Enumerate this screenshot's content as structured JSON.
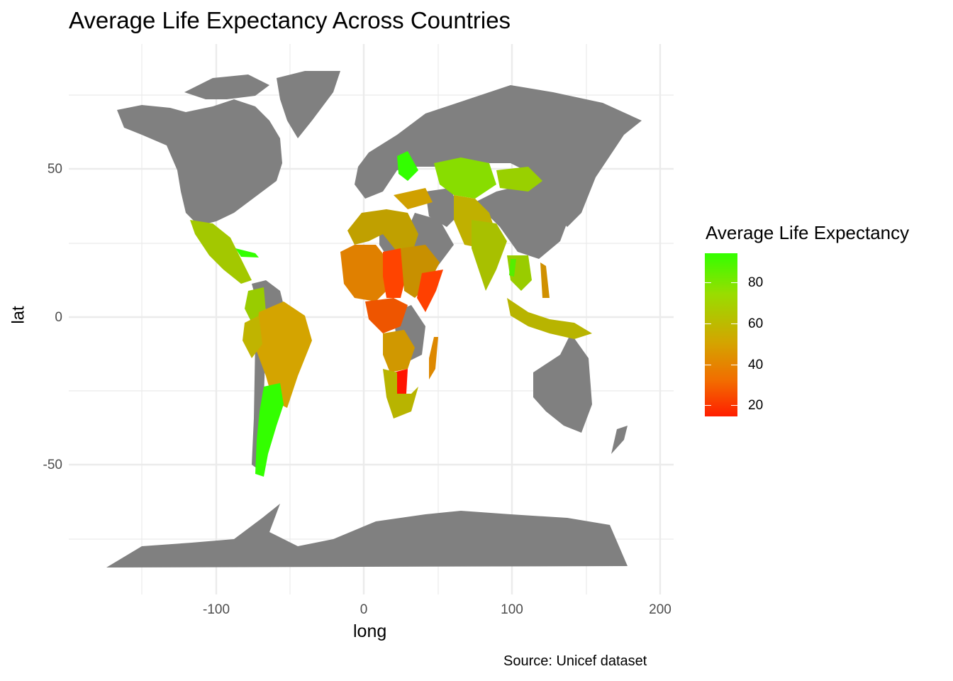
{
  "title": "Average Life Expectancy Across Countries",
  "axes": {
    "xlabel": "long",
    "ylabel": "lat",
    "xticks": [
      "-100",
      "0",
      "100",
      "200"
    ],
    "yticks": [
      "50",
      "0",
      "-50"
    ]
  },
  "caption": "Source: Unicef dataset",
  "legend": {
    "title": "Average Life Expectancy",
    "ticks": [
      "80",
      "60",
      "40",
      "20"
    ],
    "low_color": "#ff1e00",
    "high_color": "#33ff00",
    "no_data_color": "#808080"
  },
  "colors": {
    "land_missing": "#808080",
    "grid": "#ebebeb"
  }
}
